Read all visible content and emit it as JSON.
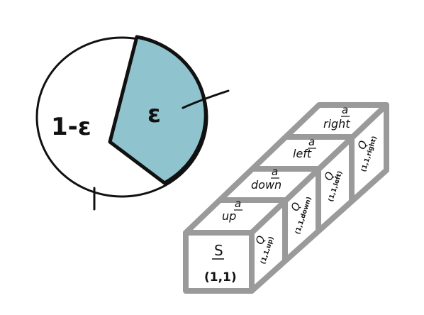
{
  "pie": {
    "epsilon_label": "ε",
    "complement_label": "1-ε",
    "epsilon_fraction": 0.18,
    "colors": {
      "epsilon_fill": "#8fc3cd",
      "stroke": "#111111"
    }
  },
  "stack": {
    "state": {
      "label": "S",
      "coords": "(1,1)"
    },
    "cubes": [
      {
        "action": "a",
        "name": "up",
        "q": "Q",
        "q_arg": "(1,1,up)"
      },
      {
        "action": "a",
        "name": "down",
        "q": "Q",
        "q_arg": "(1,1,down)"
      },
      {
        "action": "a",
        "name": "left",
        "q": "Q",
        "q_arg": "(1,1,left)"
      },
      {
        "action": "a",
        "name": "right",
        "q": "Q",
        "q_arg": "(1,1,right)"
      }
    ],
    "colors": {
      "edge": "#9a9a9a",
      "face": "#ffffff"
    }
  }
}
